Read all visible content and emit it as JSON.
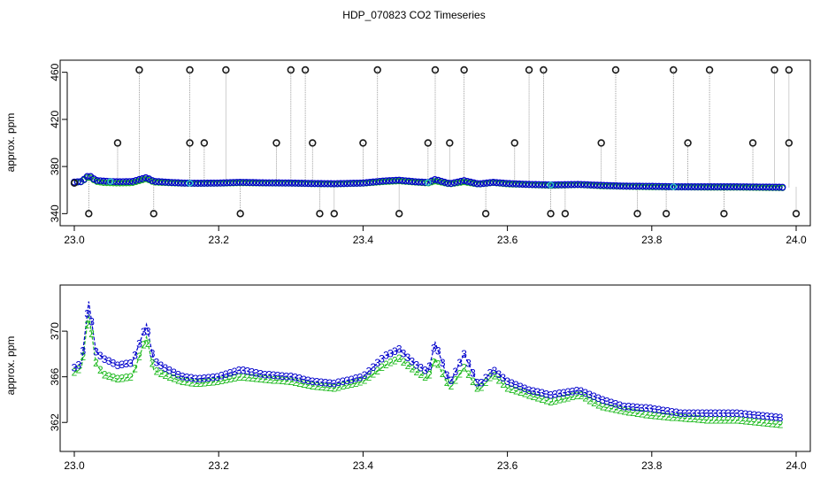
{
  "title": "HDP_070823  CO2 Timeseries",
  "colors": {
    "series_1": "#1a1a1a",
    "series_2": "#22bb22",
    "series_3": "#0000cc",
    "series_cyan": "#33cccc",
    "spike_line": "#888888"
  },
  "chart_data": [
    {
      "type": "scatter",
      "title": "HDP_070823  CO2 Timeseries",
      "xlabel": "",
      "ylabel": "approx. ppm",
      "xlim": [
        23.0,
        24.0
      ],
      "ylim": [
        335,
        465
      ],
      "x_ticks": [
        "23.0",
        "23.2",
        "23.4",
        "23.6",
        "23.8",
        "24.0"
      ],
      "y_ticks": [
        "340",
        "380",
        "420",
        "460"
      ],
      "grid": false,
      "series": [
        {
          "name": "1",
          "color": "#1a1a1a",
          "marker": "circle",
          "x": [
            23.0,
            23.02,
            23.06,
            23.09,
            23.11,
            23.16,
            23.16,
            23.18,
            23.21,
            23.23,
            23.28,
            23.3,
            23.32,
            23.33,
            23.34,
            23.36,
            23.4,
            23.42,
            23.45,
            23.49,
            23.5,
            23.52,
            23.54,
            23.57,
            23.61,
            23.63,
            23.65,
            23.66,
            23.68,
            23.73,
            23.75,
            23.78,
            23.82,
            23.83,
            23.85,
            23.88,
            23.9,
            23.94,
            23.97,
            23.99,
            23.99,
            24.0
          ],
          "y": [
            366,
            340,
            400,
            462,
            340,
            400,
            462,
            400,
            462,
            340,
            400,
            462,
            462,
            400,
            340,
            340,
            400,
            462,
            340,
            400,
            462,
            400,
            462,
            340,
            400,
            462,
            462,
            340,
            340,
            400,
            462,
            340,
            340,
            462,
            400,
            462,
            340,
            400,
            462,
            462,
            400,
            340
          ]
        },
        {
          "name": "2",
          "color": "#22bb22",
          "marker": "2",
          "points": "dense baseline ~362-367"
        },
        {
          "name": "3",
          "color": "#0000cc",
          "marker": "3",
          "points": "dense baseline ~362-372"
        }
      ]
    },
    {
      "type": "line",
      "title": "",
      "xlabel": "",
      "ylabel": "approx. ppm",
      "xlim": [
        23.0,
        24.0
      ],
      "ylim": [
        360,
        373.5
      ],
      "x_ticks": [
        "23.0",
        "23.2",
        "23.4",
        "23.6",
        "23.8",
        "24.0"
      ],
      "y_ticks": [
        "362",
        "366",
        "370"
      ],
      "grid": false,
      "series": [
        {
          "name": "2",
          "color": "#22bb22",
          "marker": "2",
          "x": [
            23.0,
            23.01,
            23.02,
            23.03,
            23.04,
            23.06,
            23.08,
            23.1,
            23.11,
            23.13,
            23.15,
            23.17,
            23.2,
            23.23,
            23.26,
            23.3,
            23.33,
            23.36,
            23.4,
            23.43,
            23.45,
            23.47,
            23.49,
            23.5,
            23.52,
            23.54,
            23.56,
            23.58,
            23.6,
            23.63,
            23.66,
            23.7,
            23.73,
            23.76,
            23.8,
            23.84,
            23.88,
            23.92,
            23.95,
            23.98
          ],
          "y": [
            366.4,
            366.8,
            371.5,
            367.2,
            366.2,
            365.8,
            366.0,
            369.5,
            366.6,
            366.0,
            365.6,
            365.4,
            365.6,
            366.0,
            365.8,
            365.6,
            365.2,
            365.0,
            365.6,
            367.0,
            367.6,
            366.6,
            365.8,
            367.6,
            365.0,
            366.8,
            364.8,
            366.2,
            365.0,
            364.4,
            363.8,
            364.4,
            363.4,
            363.0,
            362.6,
            362.4,
            362.2,
            362.2,
            362.0,
            361.8
          ]
        },
        {
          "name": "3",
          "color": "#0000cc",
          "marker": "3",
          "x": [
            23.0,
            23.01,
            23.02,
            23.03,
            23.04,
            23.06,
            23.08,
            23.1,
            23.11,
            23.13,
            23.15,
            23.17,
            23.2,
            23.23,
            23.26,
            23.3,
            23.33,
            23.36,
            23.4,
            23.43,
            23.45,
            23.47,
            23.49,
            23.5,
            23.52,
            23.54,
            23.56,
            23.58,
            23.6,
            23.63,
            23.66,
            23.7,
            23.73,
            23.76,
            23.8,
            23.84,
            23.88,
            23.92,
            23.95,
            23.98
          ],
          "y": [
            366.8,
            367.2,
            372.6,
            368.2,
            367.6,
            367.0,
            367.2,
            370.6,
            367.4,
            366.6,
            366.0,
            365.8,
            366.0,
            366.6,
            366.2,
            366.0,
            365.6,
            365.4,
            366.0,
            367.8,
            368.4,
            367.2,
            366.4,
            369.0,
            365.4,
            368.0,
            365.2,
            366.6,
            365.6,
            364.8,
            364.4,
            364.8,
            364.0,
            363.4,
            363.2,
            362.8,
            362.8,
            362.8,
            362.6,
            362.4
          ]
        }
      ]
    }
  ]
}
